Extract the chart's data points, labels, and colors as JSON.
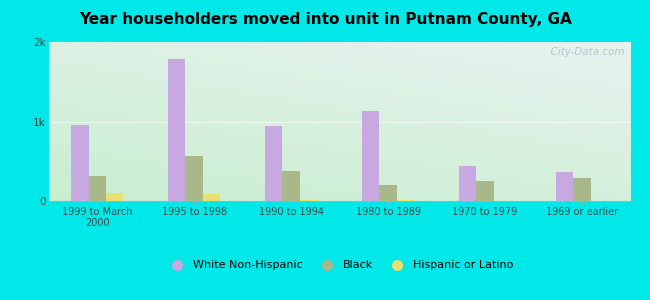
{
  "title": "Year householders moved into unit in Putnam County, GA",
  "categories": [
    "1999 to March\n2000",
    "1995 to 1998",
    "1990 to 1994",
    "1980 to 1989",
    "1970 to 1979",
    "1969 or earlier"
  ],
  "white": [
    950,
    1780,
    940,
    1130,
    440,
    370
  ],
  "black": [
    310,
    570,
    380,
    200,
    250,
    290
  ],
  "hispanic": [
    95,
    90,
    15,
    15,
    0,
    0
  ],
  "white_color": "#c8a8e0",
  "black_color": "#a8b888",
  "hispanic_color": "#e8e070",
  "ylim": [
    0,
    2000
  ],
  "yticks": [
    0,
    1000,
    2000
  ],
  "ytick_labels": [
    "0",
    "1k",
    "2k"
  ],
  "bg_outer": "#00e8e8",
  "bg_plot_top_left": "#d0ead8",
  "bg_plot_top_right": "#dde8f0",
  "bg_plot_bottom": "#c8e8d0",
  "bar_width": 0.18,
  "legend_labels": [
    "White Non-Hispanic",
    "Black",
    "Hispanic or Latino"
  ],
  "watermark": "  City-Data.com"
}
